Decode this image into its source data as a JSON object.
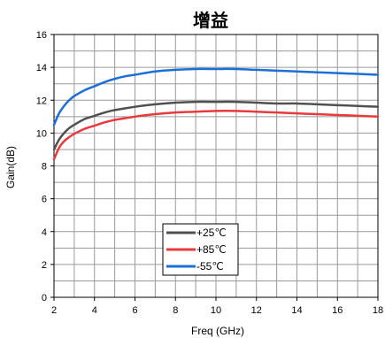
{
  "chart_data": {
    "type": "line",
    "title": "增益",
    "xlabel": "Freq (GHz)",
    "ylabel": "Gain(dB)",
    "xlim": [
      2,
      18
    ],
    "ylim": [
      0,
      16
    ],
    "xticks": [
      2,
      4,
      6,
      8,
      10,
      12,
      14,
      16,
      18
    ],
    "yticks": [
      0,
      2,
      4,
      6,
      8,
      10,
      12,
      14,
      16
    ],
    "xtick_labels": [
      "2",
      "4",
      "6",
      "8",
      "10",
      "12",
      "14",
      "16",
      "18"
    ],
    "ytick_labels": [
      "0",
      "2",
      "4",
      "6",
      "8",
      "10",
      "12",
      "14",
      "16"
    ],
    "grid": true,
    "legend_position": "bottom-center",
    "series": [
      {
        "name": "+25℃",
        "color": "#505050",
        "x": [
          2,
          2.25,
          2.5,
          2.75,
          3,
          3.5,
          4,
          4.5,
          5,
          5.5,
          6,
          7,
          8,
          9,
          10,
          11,
          12,
          13,
          14,
          15,
          16,
          17,
          18
        ],
        "y": [
          9.0,
          9.6,
          10.0,
          10.3,
          10.5,
          10.85,
          11.05,
          11.25,
          11.4,
          11.5,
          11.6,
          11.75,
          11.85,
          11.9,
          11.9,
          11.9,
          11.85,
          11.8,
          11.8,
          11.75,
          11.7,
          11.65,
          11.6
        ]
      },
      {
        "name": "+85℃",
        "color": "#e8393c",
        "x": [
          2,
          2.25,
          2.5,
          2.75,
          3,
          3.5,
          4,
          4.5,
          5,
          5.5,
          6,
          7,
          8,
          9,
          10,
          11,
          12,
          13,
          14,
          15,
          16,
          17,
          18
        ],
        "y": [
          8.4,
          9.1,
          9.5,
          9.75,
          9.95,
          10.25,
          10.45,
          10.65,
          10.8,
          10.9,
          11.0,
          11.15,
          11.25,
          11.3,
          11.35,
          11.35,
          11.3,
          11.25,
          11.2,
          11.15,
          11.1,
          11.05,
          11.0
        ]
      },
      {
        "name": "-55℃",
        "color": "#1c6fd6",
        "x": [
          2,
          2.25,
          2.5,
          2.75,
          3,
          3.5,
          4,
          4.5,
          5,
          5.5,
          6,
          7,
          8,
          9,
          10,
          11,
          12,
          13,
          14,
          15,
          16,
          17,
          18
        ],
        "y": [
          10.5,
          11.2,
          11.65,
          12.0,
          12.25,
          12.6,
          12.85,
          13.1,
          13.3,
          13.45,
          13.55,
          13.75,
          13.85,
          13.9,
          13.9,
          13.9,
          13.85,
          13.8,
          13.75,
          13.7,
          13.65,
          13.6,
          13.55
        ]
      }
    ]
  }
}
